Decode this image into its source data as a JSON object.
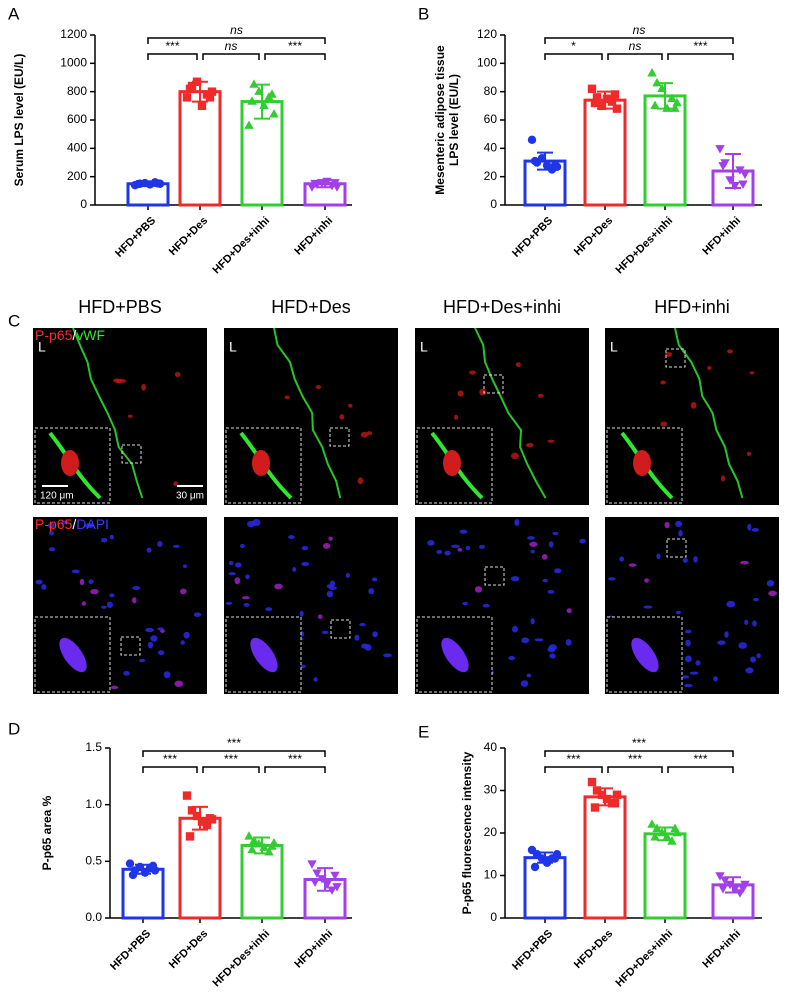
{
  "chart_data": [
    {
      "type": "bar",
      "panel": "A",
      "ylabel": [
        "Serum LPS level (EU/L)"
      ],
      "categories": [
        "HFD+PBS",
        "HFD+Des",
        "HFD+Des+inhi",
        "HFD+inhi"
      ],
      "colors": [
        "#1f35e8",
        "#ee2a2a",
        "#33cc33",
        "#a23fe6"
      ],
      "values": [
        150,
        800,
        730,
        150
      ],
      "errors": [
        15,
        70,
        120,
        25
      ],
      "points": [
        [
          140,
          150,
          155,
          145,
          160,
          150,
          148,
          152
        ],
        [
          760,
          840,
          870,
          700,
          780,
          800,
          820,
          760
        ],
        [
          560,
          850,
          800,
          700,
          760,
          640,
          730,
          780
        ],
        [
          130,
          150,
          160,
          170,
          140,
          130,
          155,
          160
        ]
      ],
      "ylim": [
        0,
        1200
      ],
      "yticks": [
        0,
        200,
        400,
        600,
        800,
        1000,
        1200
      ],
      "comparisons": [
        "***",
        "ns",
        "***",
        "ns"
      ]
    },
    {
      "type": "bar",
      "panel": "B",
      "ylabel": [
        "Mesenteric adipose tissue",
        "LPS level (EU/L)"
      ],
      "categories": [
        "HFD+PBS",
        "HFD+Des",
        "HFD+Des+inhi",
        "HFD+inhi"
      ],
      "colors": [
        "#1f35e8",
        "#ee2a2a",
        "#33cc33",
        "#a23fe6"
      ],
      "values": [
        31,
        74,
        77,
        24
      ],
      "errors": [
        6,
        6,
        9,
        12
      ],
      "points": [
        [
          46,
          30,
          33,
          28,
          25,
          27,
          31,
          28
        ],
        [
          82,
          76,
          70,
          75,
          73,
          68,
          72,
          78
        ],
        [
          93,
          86,
          82,
          68,
          75,
          72,
          70,
          68
        ],
        [
          40,
          30,
          18,
          14,
          25,
          22,
          28,
          15
        ]
      ],
      "ylim": [
        0,
        120
      ],
      "yticks": [
        0,
        20,
        40,
        60,
        80,
        100,
        120
      ],
      "comparisons": [
        "*",
        "ns",
        "***",
        "ns"
      ]
    },
    {
      "type": "bar",
      "panel": "D",
      "ylabel": [
        "P-p65 area %"
      ],
      "categories": [
        "HFD+PBS",
        "HFD+Des",
        "HFD+Des+inhi",
        "HFD+inhi"
      ],
      "colors": [
        "#1f35e8",
        "#ee2a2a",
        "#33cc33",
        "#a23fe6"
      ],
      "values": [
        0.43,
        0.88,
        0.64,
        0.34
      ],
      "errors": [
        0.04,
        0.1,
        0.07,
        0.1
      ],
      "points": [
        [
          0.48,
          0.42,
          0.45,
          0.4,
          0.44,
          0.42,
          0.38,
          0.46
        ],
        [
          1.08,
          0.95,
          0.9,
          0.85,
          0.82,
          0.87,
          0.72,
          0.88
        ],
        [
          0.72,
          0.68,
          0.65,
          0.62,
          0.58,
          0.66,
          0.6,
          0.63
        ],
        [
          0.48,
          0.4,
          0.35,
          0.3,
          0.25,
          0.28,
          0.32,
          0.38
        ]
      ],
      "ylim": [
        0,
        1.5
      ],
      "yticks": [
        {
          "value": 0,
          "label": "0.0"
        },
        {
          "value": 0.5,
          "label": "0.5"
        },
        {
          "value": 1,
          "label": "1.0"
        },
        {
          "value": 1.5,
          "label": "1.5"
        }
      ],
      "comparisons": [
        "***",
        "***",
        "***",
        "***"
      ]
    },
    {
      "type": "bar",
      "panel": "E",
      "ylabel": [
        "P-p65 fluorescence intensity"
      ],
      "categories": [
        "HFD+PBS",
        "HFD+Des",
        "HFD+Des+inhi",
        "HFD+inhi"
      ],
      "colors": [
        "#1f35e8",
        "#ee2a2a",
        "#33cc33",
        "#a23fe6"
      ],
      "values": [
        14.2,
        28.5,
        19.8,
        7.8
      ],
      "errors": [
        1.2,
        2,
        1.5,
        1.8
      ],
      "points": [
        [
          16,
          15,
          14,
          13,
          14,
          15,
          12,
          14
        ],
        [
          32,
          30,
          29,
          28,
          27,
          29,
          26,
          27
        ],
        [
          22,
          21,
          20,
          19,
          18,
          20,
          19,
          21
        ],
        [
          10,
          9,
          8,
          7,
          6,
          8,
          7,
          7
        ]
      ],
      "ylim": [
        0,
        40
      ],
      "yticks": [
        0,
        10,
        20,
        30,
        40
      ],
      "comparisons": [
        "***",
        "***",
        "***",
        "***"
      ]
    }
  ],
  "panel_c": {
    "label": "C",
    "columns": [
      "HFD+PBS",
      "HFD+Des",
      "HFD+Des+inhi",
      "HFD+inhi"
    ],
    "rows": [
      [
        "P-p65",
        "/",
        "vWF"
      ],
      [
        "P-p65",
        "/",
        "DAPI"
      ]
    ],
    "lumen_label": "L",
    "scale_bars": [
      "120 μm",
      "30 μm"
    ]
  }
}
